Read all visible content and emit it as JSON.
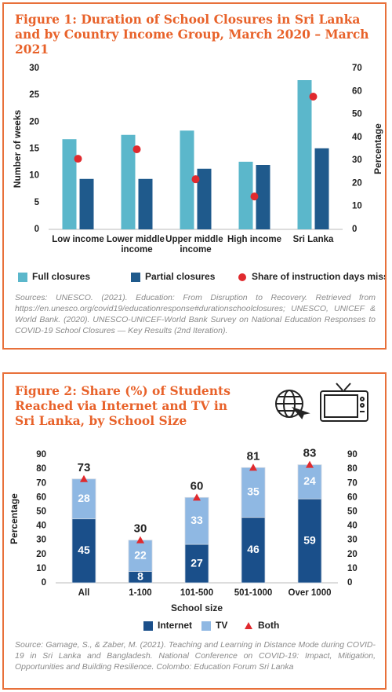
{
  "chart_data": [
    {
      "type": "bar",
      "title": "Figure 1: Duration of School Closures in Sri Lanka and by Country Income Group, March 2020 – March 2021",
      "y_label": "Number of weeks",
      "y2_label": "Percentage",
      "categories": [
        "Low income",
        "Lower middle income",
        "Upper middle income",
        "High income",
        "Sri Lanka"
      ],
      "series": [
        {
          "name": "Full closures",
          "color": "#5bb7cb",
          "values": [
            16.8,
            17.6,
            18.4,
            12.6,
            27.8
          ]
        },
        {
          "name": "Partial closures",
          "color": "#1f5a8c",
          "values": [
            9.4,
            9.4,
            11.3,
            12.0,
            15.1
          ]
        },
        {
          "name": "Share of instruction days missed",
          "color": "#e02a2e",
          "marker": "circle",
          "axis": "y2",
          "values": [
            30.7,
            34.8,
            21.8,
            14.3,
            57.7
          ]
        }
      ],
      "ylim": [
        0,
        30
      ],
      "yticks": [
        0,
        5,
        10,
        15,
        20,
        25,
        30
      ],
      "y2lim": [
        0,
        70
      ],
      "y2ticks": [
        0,
        10,
        20,
        30,
        40,
        50,
        60,
        70
      ],
      "grid": false,
      "source": "Sources: UNESCO. (2021). Education: From Disruption to Recovery. Retrieved from https://en.unesco.org/covid19/educationresponse#durationschoolclosures; UNESCO, UNICEF & World Bank. (2020). UNESCO-UNICEF-World Bank Survey on National Education Responses to COVID-19 School Closures — Key Results (2nd Iteration)."
    },
    {
      "type": "stacked_bar",
      "title": "Figure 2: Share (%) of Students Reached via Internet and TV in Sri Lanka, by School Size",
      "y_label": "Percentage",
      "x_label": "School size",
      "categories": [
        "All",
        "1-100",
        "101-500",
        "501-1000",
        "Over 1000"
      ],
      "series": [
        {
          "name": "Internet",
          "color": "#1a4f8a",
          "values": [
            45,
            8,
            27,
            46,
            59
          ]
        },
        {
          "name": "TV",
          "color": "#8fb8e3",
          "values": [
            28,
            22,
            33,
            35,
            24
          ]
        },
        {
          "name": "Both",
          "color": "#e02a2e",
          "marker": "triangle",
          "values": [
            73,
            30,
            60,
            81,
            83
          ]
        }
      ],
      "ylim": [
        0,
        90
      ],
      "yticks": [
        0,
        10,
        20,
        30,
        40,
        50,
        60,
        70,
        80,
        90
      ],
      "y2lim": [
        0,
        90
      ],
      "y2ticks": [
        0,
        10,
        20,
        30,
        40,
        50,
        60,
        70,
        80,
        90
      ],
      "data_labels": true,
      "grid": false,
      "source": "Source: Gamage, S., & Zaber, M. (2021). Teaching and Learning in Distance Mode during COVID-19 in Sri Lanka and Bangladesh. National Conference on COVID-19: Impact, Mitigation, Opportunities and Building Resilience. Colombo: Education Forum Sri Lanka"
    }
  ]
}
